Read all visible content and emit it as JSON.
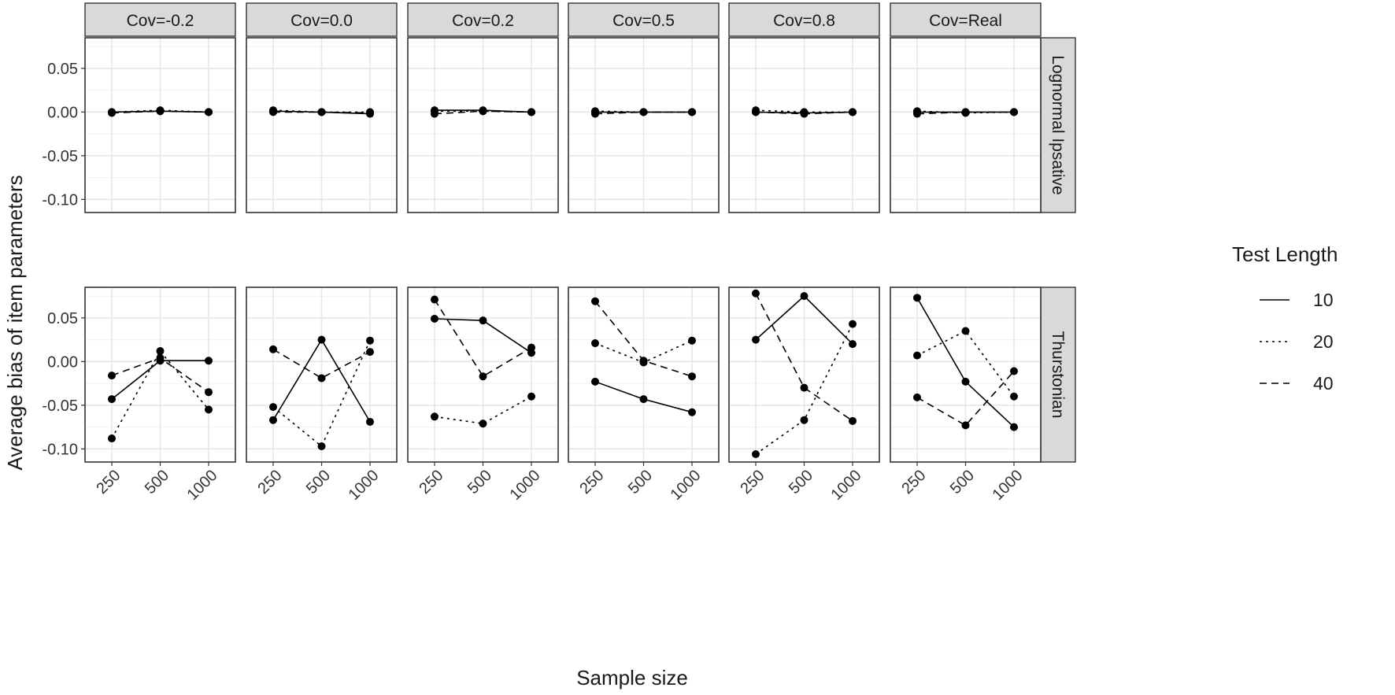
{
  "chart_data": {
    "type": "line",
    "ylabel": "Average bias of item parameters",
    "xlabel": "Sample size",
    "x_categories": [
      "250",
      "500",
      "1000"
    ],
    "y_ticks": [
      0.05,
      0.0,
      -0.05,
      -0.1
    ],
    "y_tick_labels": [
      "0.05",
      "0.00",
      "-0.05",
      "-0.10"
    ],
    "ylim": [
      -0.115,
      0.085
    ],
    "columns": [
      "Cov=-0.2",
      "Cov=0.0",
      "Cov=0.2",
      "Cov=0.5",
      "Cov=0.8",
      "Cov=Real"
    ],
    "rows": [
      "Lognormal Ipsative",
      "Thurstonian"
    ],
    "legend": {
      "title": "Test Length",
      "position": "right",
      "entries": [
        {
          "label": "10",
          "linetype": "solid"
        },
        {
          "label": "20",
          "linetype": "dotted"
        },
        {
          "label": "40",
          "linetype": "dashed"
        }
      ]
    },
    "panels": [
      [
        {
          "10": [
            0.0,
            0.001,
            0.0
          ],
          "20": [
            0.0,
            0.002,
            0.0
          ],
          "40": [
            -0.001,
            0.001,
            0.0
          ]
        },
        {
          "10": [
            0.001,
            0.0,
            -0.002
          ],
          "20": [
            0.002,
            0.0,
            0.0
          ],
          "40": [
            0.0,
            0.0,
            -0.001
          ]
        },
        {
          "10": [
            0.002,
            0.002,
            0.0
          ],
          "20": [
            0.001,
            0.001,
            0.0
          ],
          "40": [
            -0.002,
            0.001,
            0.0
          ]
        },
        {
          "10": [
            0.0,
            0.0,
            0.0
          ],
          "20": [
            0.001,
            0.0,
            0.0
          ],
          "40": [
            -0.002,
            0.0,
            0.0
          ]
        },
        {
          "10": [
            0.0,
            -0.001,
            0.0
          ],
          "20": [
            0.002,
            0.0,
            0.0
          ],
          "40": [
            0.0,
            -0.002,
            0.0
          ]
        },
        {
          "10": [
            0.0,
            0.0,
            0.0
          ],
          "20": [
            0.001,
            -0.001,
            0.0
          ],
          "40": [
            -0.002,
            0.0,
            0.0
          ]
        }
      ],
      [
        {
          "10": [
            -0.043,
            0.001,
            0.001
          ],
          "20": [
            -0.088,
            0.012,
            -0.055
          ],
          "40": [
            -0.016,
            0.004,
            -0.035
          ]
        },
        {
          "10": [
            -0.067,
            0.025,
            -0.069
          ],
          "20": [
            -0.052,
            -0.097,
            0.024
          ],
          "40": [
            0.014,
            -0.019,
            0.011
          ]
        },
        {
          "10": [
            0.049,
            0.047,
            0.01
          ],
          "20": [
            -0.063,
            -0.071,
            -0.04
          ],
          "40": [
            0.071,
            -0.017,
            0.016
          ]
        },
        {
          "10": [
            -0.023,
            -0.043,
            -0.058
          ],
          "20": [
            0.021,
            -0.001,
            0.024
          ],
          "40": [
            0.069,
            0.001,
            -0.017
          ]
        },
        {
          "10": [
            0.025,
            0.075,
            0.02
          ],
          "20": [
            -0.106,
            -0.067,
            0.043
          ],
          "40": [
            0.078,
            -0.03,
            -0.068
          ]
        },
        {
          "10": [
            0.073,
            -0.023,
            -0.075
          ],
          "20": [
            0.007,
            0.035,
            -0.04
          ],
          "40": [
            -0.041,
            -0.073,
            -0.011
          ]
        }
      ]
    ]
  }
}
